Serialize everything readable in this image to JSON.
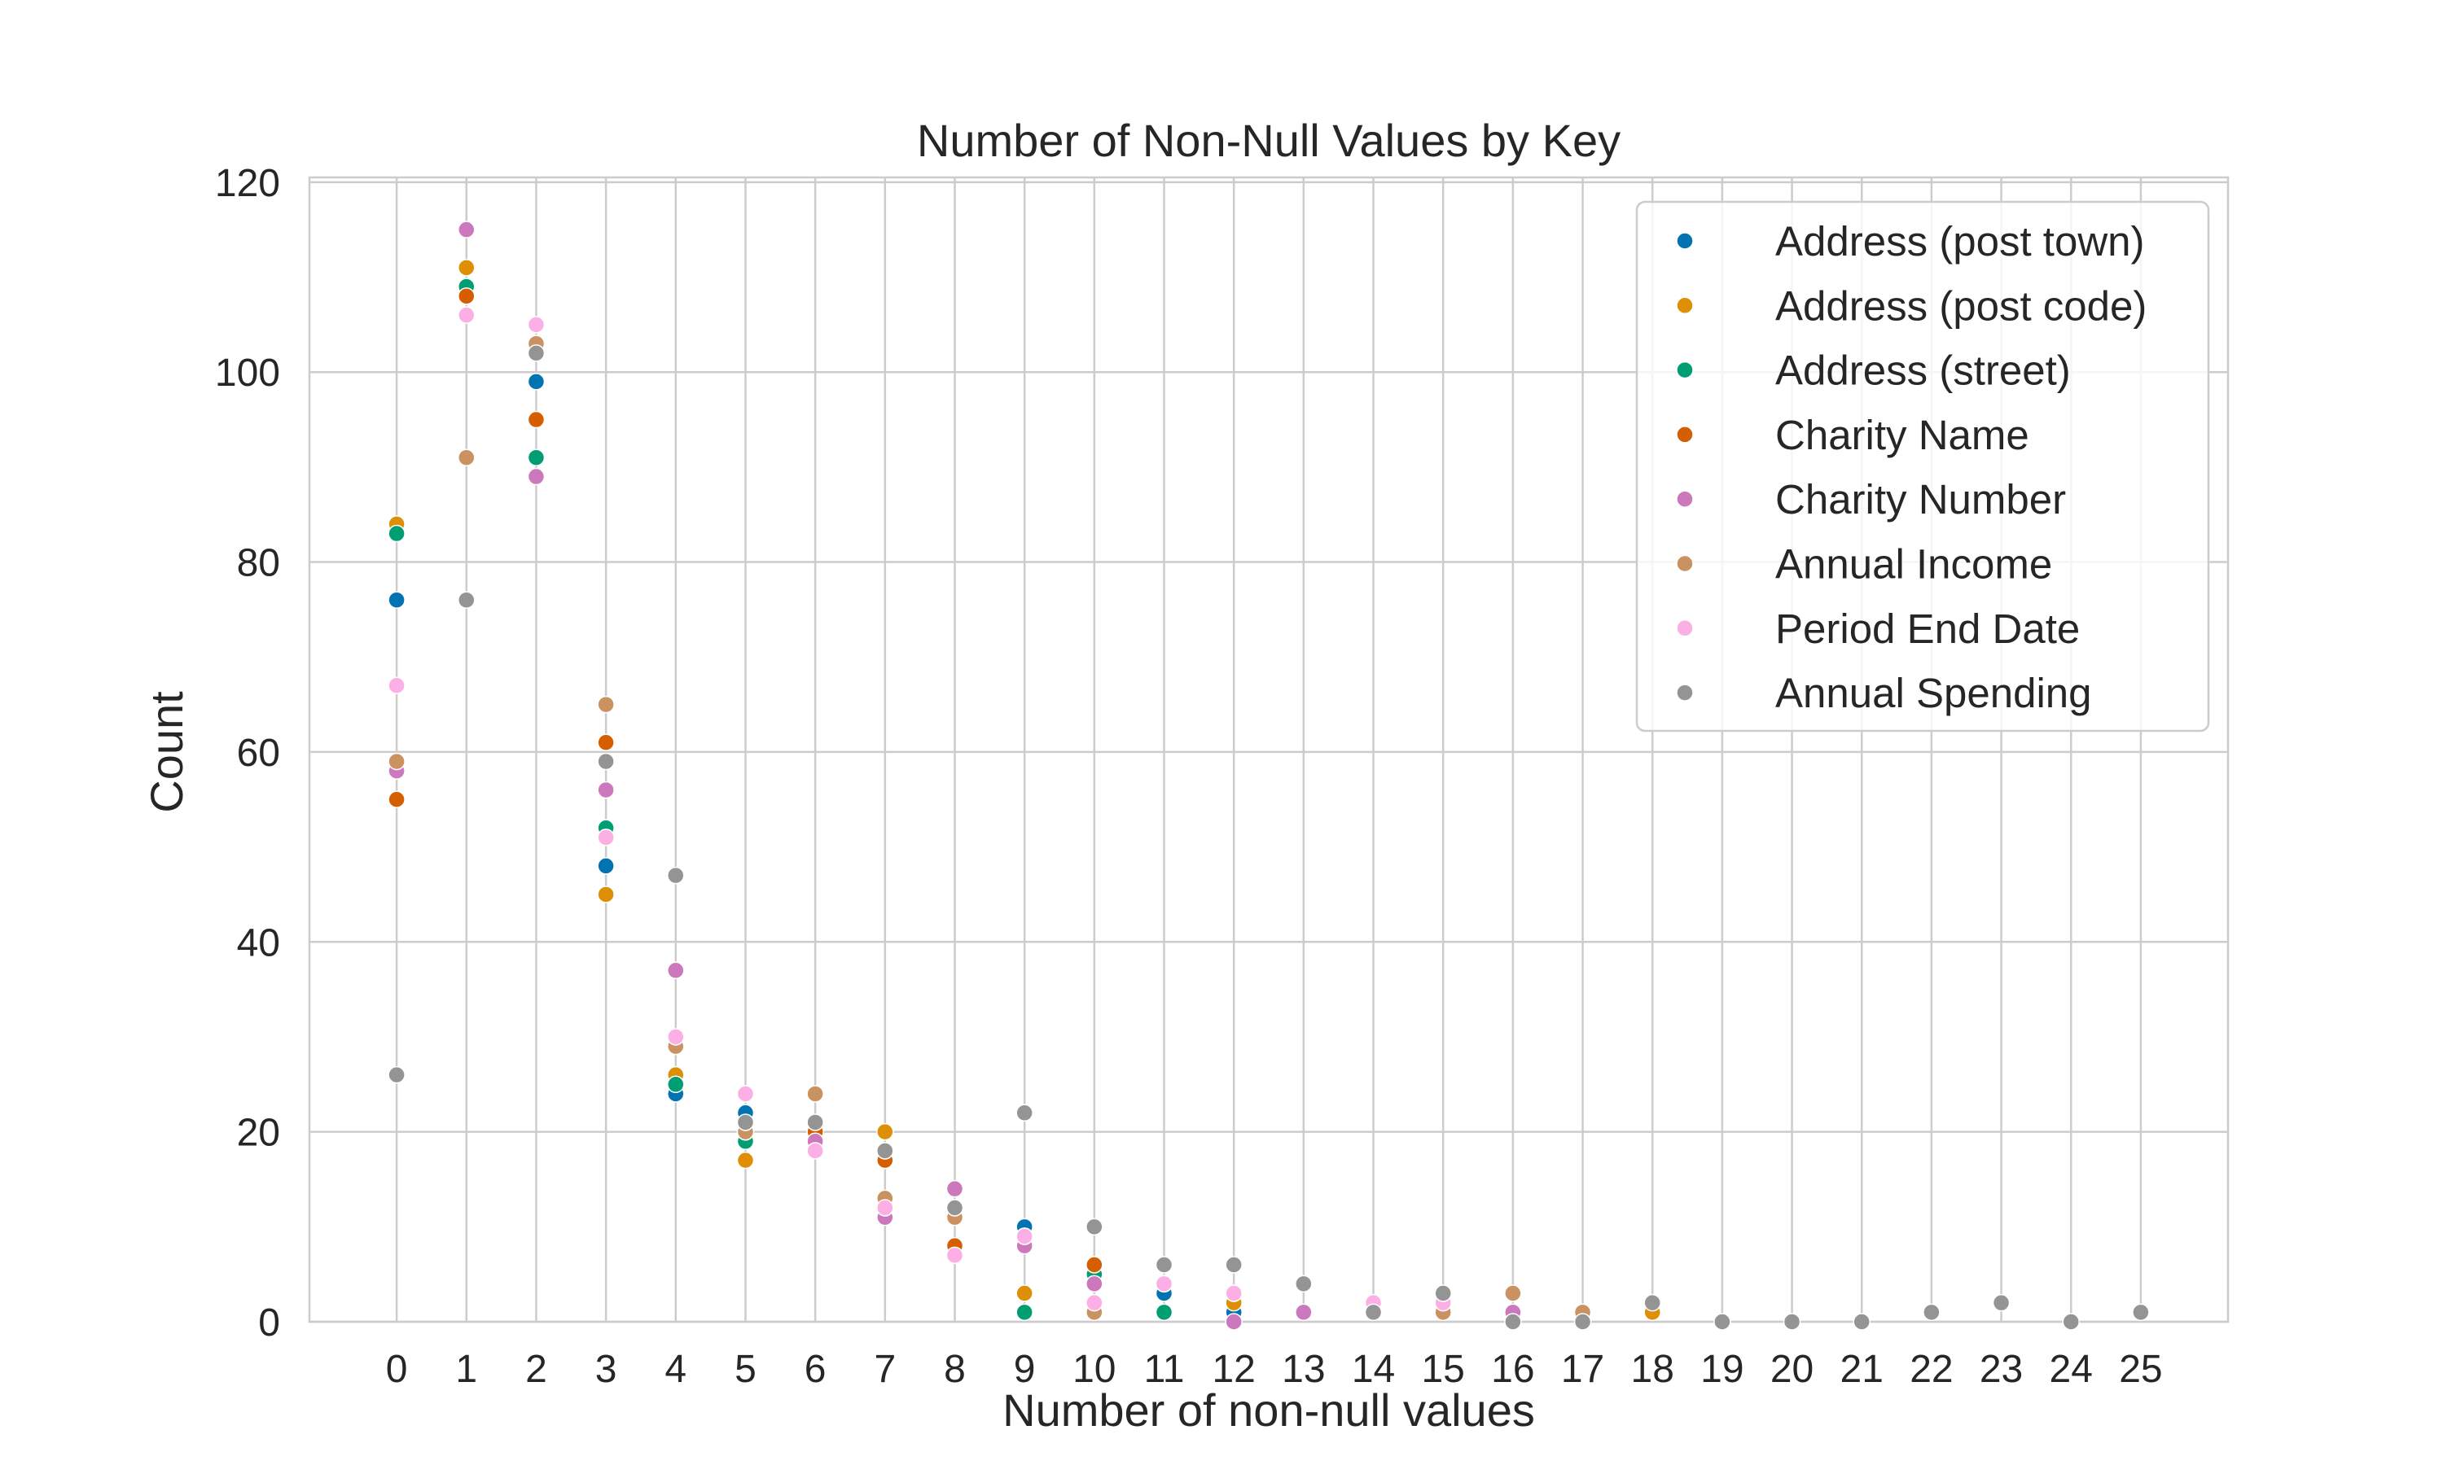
{
  "chart_data": {
    "type": "scatter",
    "title": "Number of Non-Null Values by Key",
    "xlabel": "Number of non-null values",
    "ylabel": "Count",
    "xlim": [
      -1.25,
      26.25
    ],
    "ylim": [
      0,
      120.5
    ],
    "x_ticks": [
      0,
      1,
      2,
      3,
      4,
      5,
      6,
      7,
      8,
      9,
      10,
      11,
      12,
      13,
      14,
      15,
      16,
      17,
      18,
      19,
      20,
      21,
      22,
      23,
      24,
      25
    ],
    "y_ticks": [
      0,
      20,
      40,
      60,
      80,
      100,
      120
    ],
    "grid": true,
    "legend_position": "top-right",
    "series": [
      {
        "name": "Address (post town)",
        "color": "#0173b2",
        "x": [
          0,
          1,
          2,
          3,
          4,
          5,
          6,
          7,
          8,
          9,
          10,
          11,
          12
        ],
        "y": [
          76,
          109,
          99,
          48,
          24,
          22,
          20,
          17,
          8,
          10,
          5,
          3,
          1
        ]
      },
      {
        "name": "Address (post code)",
        "color": "#de8f05",
        "x": [
          0,
          1,
          2,
          3,
          4,
          5,
          6,
          7,
          8,
          9,
          10,
          12,
          18
        ],
        "y": [
          84,
          111,
          95,
          45,
          26,
          17,
          20,
          20,
          8,
          3,
          6,
          2,
          1
        ]
      },
      {
        "name": "Address (street)",
        "color": "#029e73",
        "x": [
          0,
          1,
          2,
          3,
          4,
          5,
          6,
          7,
          8,
          9,
          10,
          11
        ],
        "y": [
          83,
          109,
          91,
          52,
          25,
          19,
          19,
          17,
          8,
          1,
          5,
          1
        ]
      },
      {
        "name": "Charity Name",
        "color": "#d55e00",
        "x": [
          0,
          1,
          2,
          3,
          4,
          5,
          6,
          7,
          8,
          9,
          10
        ],
        "y": [
          55,
          108,
          95,
          61,
          29,
          20,
          20,
          17,
          8,
          9,
          6
        ]
      },
      {
        "name": "Charity Number",
        "color": "#cc78bc",
        "x": [
          0,
          1,
          2,
          3,
          4,
          5,
          6,
          7,
          8,
          9,
          10,
          12,
          13,
          16
        ],
        "y": [
          58,
          115,
          89,
          56,
          37,
          20,
          19,
          11,
          14,
          8,
          4,
          0,
          1,
          1
        ]
      },
      {
        "name": "Annual Income",
        "color": "#ca9161",
        "x": [
          0,
          1,
          2,
          3,
          4,
          5,
          6,
          7,
          8,
          9,
          10,
          11,
          12,
          14,
          15,
          16,
          17
        ],
        "y": [
          59,
          91,
          103,
          65,
          29,
          20,
          24,
          13,
          11,
          9,
          1,
          4,
          3,
          2,
          1,
          3,
          1
        ]
      },
      {
        "name": "Period End Date",
        "color": "#fbafe4",
        "x": [
          0,
          1,
          2,
          3,
          4,
          5,
          6,
          7,
          8,
          9,
          10,
          11,
          12,
          14,
          15
        ],
        "y": [
          67,
          106,
          105,
          51,
          30,
          24,
          18,
          12,
          7,
          9,
          2,
          4,
          3,
          2,
          2
        ]
      },
      {
        "name": "Annual Spending",
        "color": "#949494",
        "x": [
          0,
          1,
          2,
          3,
          4,
          5,
          6,
          7,
          8,
          9,
          10,
          11,
          12,
          13,
          14,
          15,
          16,
          17,
          18,
          19,
          20,
          21,
          22,
          23,
          24,
          25
        ],
        "y": [
          26,
          76,
          102,
          59,
          47,
          21,
          21,
          18,
          12,
          22,
          10,
          6,
          6,
          4,
          1,
          3,
          0,
          0,
          2,
          0,
          0,
          0,
          1,
          2,
          0,
          1
        ]
      }
    ]
  }
}
